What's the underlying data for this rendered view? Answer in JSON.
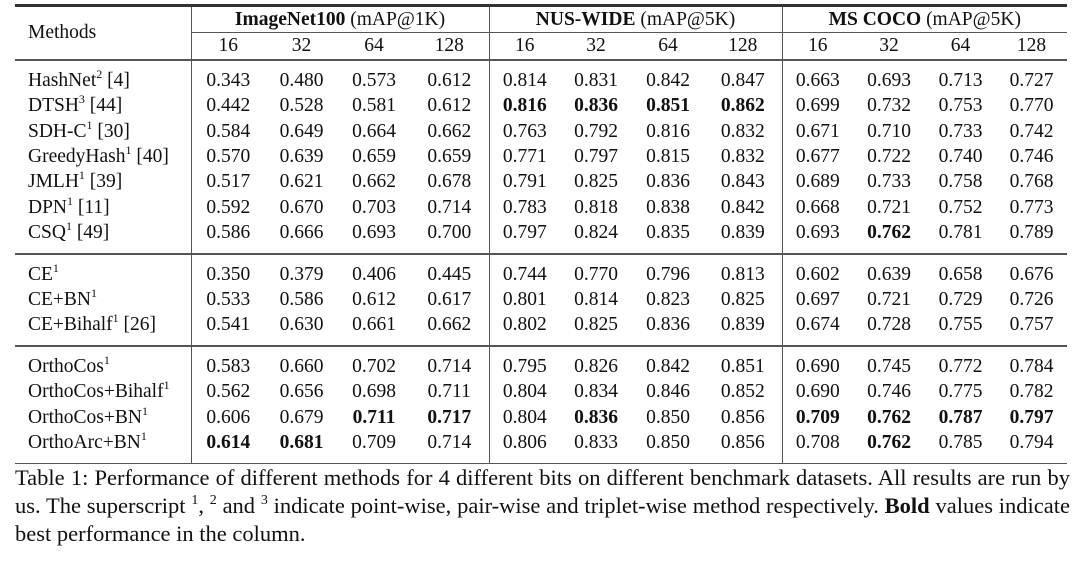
{
  "header": {
    "methods_label": "Methods",
    "groups": [
      {
        "name": "ImageNet100",
        "metric": "(mAP@1K)"
      },
      {
        "name": "NUS-WIDE",
        "metric": "(mAP@5K)"
      },
      {
        "name": "MS COCO",
        "metric": "(mAP@5K)"
      }
    ],
    "bits": [
      "16",
      "32",
      "64",
      "128"
    ]
  },
  "sections": [
    [
      {
        "name": "HashNet",
        "sup": "2",
        "ref": "[4]",
        "values": [
          "0.343",
          "0.480",
          "0.573",
          "0.612",
          "0.814",
          "0.831",
          "0.842",
          "0.847",
          "0.663",
          "0.693",
          "0.713",
          "0.727"
        ],
        "bold": []
      },
      {
        "name": "DTSH",
        "sup": "3",
        "ref": "[44]",
        "values": [
          "0.442",
          "0.528",
          "0.581",
          "0.612",
          "0.816",
          "0.836",
          "0.851",
          "0.862",
          "0.699",
          "0.732",
          "0.753",
          "0.770"
        ],
        "bold": [
          4,
          5,
          6,
          7
        ]
      },
      {
        "name": "SDH-C",
        "sup": "1",
        "ref": "[30]",
        "values": [
          "0.584",
          "0.649",
          "0.664",
          "0.662",
          "0.763",
          "0.792",
          "0.816",
          "0.832",
          "0.671",
          "0.710",
          "0.733",
          "0.742"
        ],
        "bold": []
      },
      {
        "name": "GreedyHash",
        "sup": "1",
        "ref": "[40]",
        "values": [
          "0.570",
          "0.639",
          "0.659",
          "0.659",
          "0.771",
          "0.797",
          "0.815",
          "0.832",
          "0.677",
          "0.722",
          "0.740",
          "0.746"
        ],
        "bold": []
      },
      {
        "name": "JMLH",
        "sup": "1",
        "ref": "[39]",
        "values": [
          "0.517",
          "0.621",
          "0.662",
          "0.678",
          "0.791",
          "0.825",
          "0.836",
          "0.843",
          "0.689",
          "0.733",
          "0.758",
          "0.768"
        ],
        "bold": []
      },
      {
        "name": "DPN",
        "sup": "1",
        "ref": "[11]",
        "values": [
          "0.592",
          "0.670",
          "0.703",
          "0.714",
          "0.783",
          "0.818",
          "0.838",
          "0.842",
          "0.668",
          "0.721",
          "0.752",
          "0.773"
        ],
        "bold": []
      },
      {
        "name": "CSQ",
        "sup": "1",
        "ref": "[49]",
        "values": [
          "0.586",
          "0.666",
          "0.693",
          "0.700",
          "0.797",
          "0.824",
          "0.835",
          "0.839",
          "0.693",
          "0.762",
          "0.781",
          "0.789"
        ],
        "bold": [
          9
        ]
      }
    ],
    [
      {
        "name": "CE",
        "sup": "1",
        "ref": "",
        "values": [
          "0.350",
          "0.379",
          "0.406",
          "0.445",
          "0.744",
          "0.770",
          "0.796",
          "0.813",
          "0.602",
          "0.639",
          "0.658",
          "0.676"
        ],
        "bold": []
      },
      {
        "name": "CE+BN",
        "sup": "1",
        "ref": "",
        "values": [
          "0.533",
          "0.586",
          "0.612",
          "0.617",
          "0.801",
          "0.814",
          "0.823",
          "0.825",
          "0.697",
          "0.721",
          "0.729",
          "0.726"
        ],
        "bold": []
      },
      {
        "name": "CE+Bihalf",
        "sup": "1",
        "ref": "[26]",
        "values": [
          "0.541",
          "0.630",
          "0.661",
          "0.662",
          "0.802",
          "0.825",
          "0.836",
          "0.839",
          "0.674",
          "0.728",
          "0.755",
          "0.757"
        ],
        "bold": []
      }
    ],
    [
      {
        "name": "OrthoCos",
        "sup": "1",
        "ref": "",
        "values": [
          "0.583",
          "0.660",
          "0.702",
          "0.714",
          "0.795",
          "0.826",
          "0.842",
          "0.851",
          "0.690",
          "0.745",
          "0.772",
          "0.784"
        ],
        "bold": []
      },
      {
        "name": "OrthoCos+Bihalf",
        "sup": "1",
        "ref": "",
        "values": [
          "0.562",
          "0.656",
          "0.698",
          "0.711",
          "0.804",
          "0.834",
          "0.846",
          "0.852",
          "0.690",
          "0.746",
          "0.775",
          "0.782"
        ],
        "bold": []
      },
      {
        "name": "OrthoCos+BN",
        "sup": "1",
        "ref": "",
        "values": [
          "0.606",
          "0.679",
          "0.711",
          "0.717",
          "0.804",
          "0.836",
          "0.850",
          "0.856",
          "0.709",
          "0.762",
          "0.787",
          "0.797"
        ],
        "bold": [
          2,
          3,
          5,
          8,
          9,
          10,
          11
        ]
      },
      {
        "name": "OrthoArc+BN",
        "sup": "1",
        "ref": "",
        "values": [
          "0.614",
          "0.681",
          "0.709",
          "0.714",
          "0.806",
          "0.833",
          "0.850",
          "0.856",
          "0.708",
          "0.762",
          "0.785",
          "0.794"
        ],
        "bold": [
          0,
          1,
          9
        ]
      }
    ]
  ],
  "caption": {
    "part1": "Table 1: Performance of different methods for 4 different bits on different benchmark datasets. All results are run by us. The superscript ",
    "sup1": "1",
    "part2": ", ",
    "sup2": "2",
    "part3": " and ",
    "sup3": "3",
    "part4": " indicate point-wise, pair-wise and triplet-wise method respectively. ",
    "bold": "Bold",
    "part5": " values indicate best performance in the column."
  }
}
